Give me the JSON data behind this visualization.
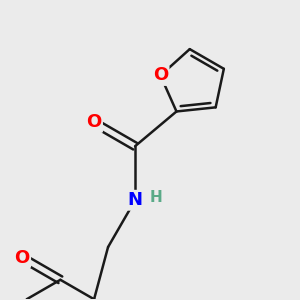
{
  "bg_color": "#ebebeb",
  "bond_color": "#1a1a1a",
  "O_color": "#ff0000",
  "N_color": "#0000ff",
  "H_color": "#5aaa88",
  "bond_width": 1.8,
  "font_size_atom": 13,
  "font_size_H": 11,
  "xlim": [
    0.0,
    5.0
  ],
  "ylim": [
    0.0,
    5.5
  ]
}
